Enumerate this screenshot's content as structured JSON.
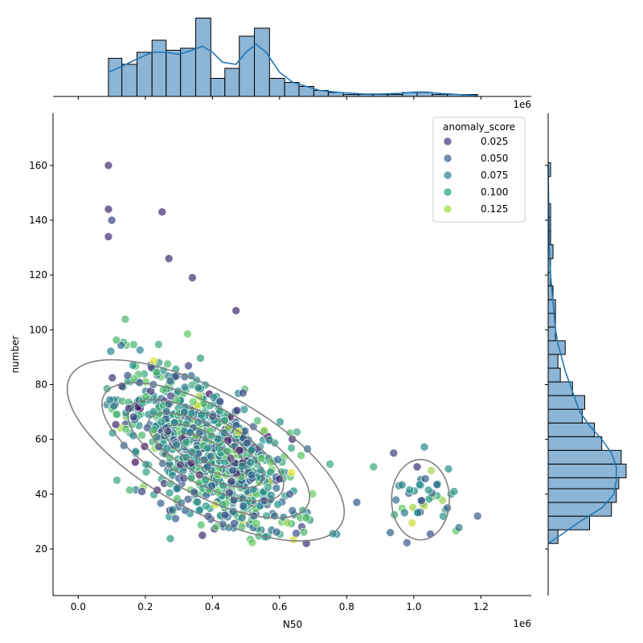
{
  "chart_data": {
    "type": "scatter",
    "title": "",
    "xlabel": "N50",
    "ylabel": "number",
    "x_offset_text": "1e6",
    "marginal_offset_text": "1e6",
    "xlim": [
      -0.075,
      1.35
    ],
    "ylim": [
      3,
      179
    ],
    "x_ticks": [
      0.0,
      0.2,
      0.4,
      0.6,
      0.8,
      1.0,
      1.2
    ],
    "x_tick_labels": [
      "0.0",
      "0.2",
      "0.4",
      "0.6",
      "0.8",
      "1.0",
      "1.2"
    ],
    "y_ticks": [
      20,
      40,
      60,
      80,
      100,
      120,
      140,
      160
    ],
    "y_tick_labels": [
      "20",
      "40",
      "60",
      "80",
      "100",
      "120",
      "140",
      "160"
    ],
    "grid": false,
    "legend": {
      "title": "anomaly_score",
      "placement": "top-right",
      "entries": [
        {
          "label": "0.025",
          "color": "#46327e"
        },
        {
          "label": "0.050",
          "color": "#365c8d"
        },
        {
          "label": "0.075",
          "color": "#277f8e"
        },
        {
          "label": "0.100",
          "color": "#1fa187"
        },
        {
          "label": "0.125",
          "color": "#a0da39"
        }
      ]
    },
    "colors": {
      "kde_contour": "#808080",
      "hist_fill": "#8cb5d6",
      "hist_edge": "#000000",
      "kde_line": "#1f77b4"
    },
    "colormap": [
      "#440154",
      "#3b528b",
      "#21918c",
      "#5ec962",
      "#fde725"
    ],
    "score_range": [
      0.0,
      0.15
    ],
    "clusters": [
      {
        "cx": 0.38,
        "cy": 56,
        "sx": 0.13,
        "sy": 16,
        "rho": -0.6,
        "n": 880
      },
      {
        "cx": 1.02,
        "cy": 38,
        "sx": 0.05,
        "sy": 8,
        "rho": 0.0,
        "n": 40
      }
    ],
    "points": [
      {
        "x": 0.09,
        "y": 160,
        "s": 0.02
      },
      {
        "x": 0.09,
        "y": 144,
        "s": 0.02
      },
      {
        "x": 0.25,
        "y": 143,
        "s": 0.02
      },
      {
        "x": 0.1,
        "y": 140,
        "s": 0.03
      },
      {
        "x": 0.09,
        "y": 134,
        "s": 0.02
      },
      {
        "x": 0.27,
        "y": 126,
        "s": 0.02
      },
      {
        "x": 0.34,
        "y": 119,
        "s": 0.02
      },
      {
        "x": 0.47,
        "y": 107,
        "s": 0.02
      },
      {
        "x": 0.19,
        "y": 41,
        "s": 0.03
      },
      {
        "x": 0.37,
        "y": 25,
        "s": 0.02
      },
      {
        "x": 0.68,
        "y": 22,
        "s": 0.02
      },
      {
        "x": 1.19,
        "y": 32,
        "s": 0.04
      },
      {
        "x": 0.93,
        "y": 26,
        "s": 0.05
      },
      {
        "x": 0.94,
        "y": 55,
        "s": 0.03
      },
      {
        "x": 1.01,
        "y": 50,
        "s": 0.02
      },
      {
        "x": 0.88,
        "y": 50,
        "s": 0.09
      },
      {
        "x": 0.75,
        "y": 51,
        "s": 0.09
      },
      {
        "x": 0.83,
        "y": 37,
        "s": 0.04
      },
      {
        "x": 1.12,
        "y": 41,
        "s": 0.08
      },
      {
        "x": 1.1,
        "y": 35,
        "s": 0.05
      }
    ],
    "hist_x": {
      "bins": [
        [
          0.09,
          0.13,
          19
        ],
        [
          0.13,
          0.175,
          16
        ],
        [
          0.175,
          0.22,
          22
        ],
        [
          0.22,
          0.262,
          28
        ],
        [
          0.262,
          0.305,
          23
        ],
        [
          0.305,
          0.35,
          24
        ],
        [
          0.35,
          0.395,
          39
        ],
        [
          0.395,
          0.437,
          9
        ],
        [
          0.437,
          0.48,
          14
        ],
        [
          0.48,
          0.525,
          30
        ],
        [
          0.525,
          0.57,
          34
        ],
        [
          0.57,
          0.615,
          9
        ],
        [
          0.615,
          0.658,
          7
        ],
        [
          0.658,
          0.702,
          5
        ],
        [
          0.702,
          0.745,
          3
        ],
        [
          0.745,
          0.79,
          2
        ],
        [
          0.79,
          0.835,
          1
        ],
        [
          0.835,
          0.878,
          1
        ],
        [
          0.878,
          0.922,
          1
        ],
        [
          0.922,
          0.966,
          1
        ],
        [
          0.966,
          1.01,
          2
        ],
        [
          1.01,
          1.055,
          2
        ],
        [
          1.055,
          1.1,
          1
        ],
        [
          1.1,
          1.145,
          1
        ],
        [
          1.145,
          1.19,
          1
        ]
      ],
      "kde": [
        [
          0.09,
          12
        ],
        [
          0.13,
          15
        ],
        [
          0.18,
          19
        ],
        [
          0.22,
          22
        ],
        [
          0.26,
          22
        ],
        [
          0.3,
          21
        ],
        [
          0.34,
          23
        ],
        [
          0.37,
          25
        ],
        [
          0.4,
          22
        ],
        [
          0.43,
          17
        ],
        [
          0.47,
          16
        ],
        [
          0.5,
          22
        ],
        [
          0.53,
          26
        ],
        [
          0.56,
          22
        ],
        [
          0.6,
          12
        ],
        [
          0.64,
          7
        ],
        [
          0.68,
          5
        ],
        [
          0.72,
          3
        ],
        [
          0.78,
          2
        ],
        [
          0.85,
          1.2
        ],
        [
          0.9,
          1.2
        ],
        [
          0.96,
          1.6
        ],
        [
          1.0,
          2.2
        ],
        [
          1.04,
          2.2
        ],
        [
          1.08,
          1.5
        ],
        [
          1.13,
          1
        ],
        [
          1.19,
          0.5
        ]
      ]
    },
    "hist_y": {
      "bins": [
        [
          22,
          27,
          4
        ],
        [
          27,
          32,
          17
        ],
        [
          32,
          37,
          26
        ],
        [
          37,
          42,
          28
        ],
        [
          42,
          46,
          29
        ],
        [
          46,
          51,
          32
        ],
        [
          51,
          56,
          30
        ],
        [
          56,
          61,
          22
        ],
        [
          61,
          66,
          19
        ],
        [
          66,
          71,
          14
        ],
        [
          71,
          76,
          15
        ],
        [
          76,
          81,
          10
        ],
        [
          81,
          86,
          5
        ],
        [
          86,
          91,
          4
        ],
        [
          91,
          96,
          7
        ],
        [
          96,
          101,
          3
        ],
        [
          101,
          106,
          3
        ],
        [
          106,
          111,
          3
        ],
        [
          111,
          116,
          2
        ],
        [
          116,
          121,
          1
        ],
        [
          121,
          126,
          1
        ],
        [
          126,
          131,
          2
        ],
        [
          131,
          136,
          1
        ],
        [
          136,
          141,
          1
        ],
        [
          141,
          146,
          1
        ],
        [
          156,
          161,
          1
        ]
      ],
      "kde": [
        [
          22,
          0
        ],
        [
          25,
          5
        ],
        [
          30,
          13
        ],
        [
          35,
          22
        ],
        [
          40,
          27
        ],
        [
          45,
          28
        ],
        [
          50,
          28
        ],
        [
          55,
          26
        ],
        [
          60,
          22
        ],
        [
          65,
          17
        ],
        [
          70,
          13
        ],
        [
          75,
          11
        ],
        [
          80,
          9
        ],
        [
          85,
          7
        ],
        [
          90,
          5.5
        ],
        [
          95,
          4
        ],
        [
          100,
          3
        ],
        [
          110,
          2
        ],
        [
          120,
          1
        ],
        [
          130,
          0.5
        ],
        [
          140,
          0.3
        ],
        [
          160,
          0
        ]
      ]
    }
  }
}
